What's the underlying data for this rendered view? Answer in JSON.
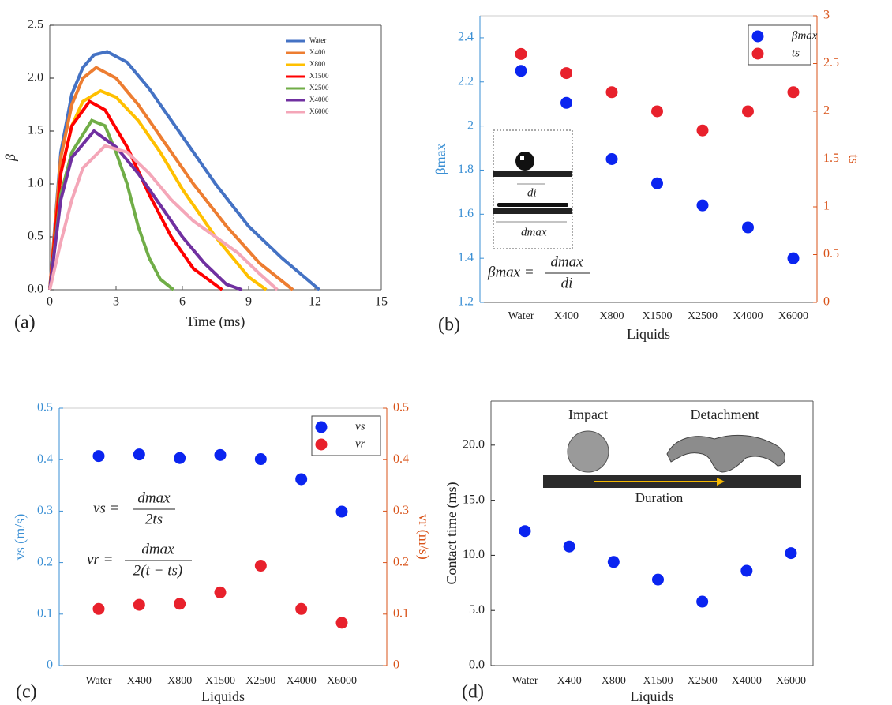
{
  "chart_data": [
    {
      "type": "line",
      "panel_label": "(a)",
      "xlabel": "Time (ms)",
      "ylabel": "β",
      "xlim": [
        0,
        15
      ],
      "xticks": [
        0,
        3,
        6,
        9,
        12,
        15
      ],
      "ylim": [
        0,
        2.5
      ],
      "yticks": [
        {
          "value": 0,
          "label": "0.0"
        },
        0.5,
        {
          "value": 1,
          "label": "1.0"
        },
        1.5,
        {
          "value": 2,
          "label": "2.0"
        },
        2.5
      ],
      "legend": "upper right",
      "series": [
        {
          "name": "Water",
          "color": "#4472c4",
          "x": [
            0,
            0.5,
            1,
            1.5,
            2,
            2.6,
            3.5,
            4.5,
            6,
            7.5,
            9,
            10.5,
            12.2
          ],
          "values": [
            0,
            1.3,
            1.85,
            2.1,
            2.22,
            2.25,
            2.15,
            1.9,
            1.45,
            1.0,
            0.6,
            0.3,
            0
          ]
        },
        {
          "name": "X400",
          "color": "#ed7d31",
          "x": [
            0,
            0.5,
            1,
            1.5,
            2.1,
            3,
            4,
            5,
            6.5,
            8,
            9.5,
            11
          ],
          "values": [
            0,
            1.25,
            1.75,
            2.0,
            2.1,
            2.0,
            1.75,
            1.45,
            1.0,
            0.6,
            0.25,
            0
          ]
        },
        {
          "name": "X800",
          "color": "#ffc000",
          "x": [
            0,
            0.5,
            1,
            1.5,
            2.3,
            3,
            4,
            5,
            6,
            7.5,
            9,
            9.8
          ],
          "values": [
            0,
            1.1,
            1.55,
            1.78,
            1.88,
            1.82,
            1.6,
            1.3,
            0.95,
            0.5,
            0.12,
            0
          ]
        },
        {
          "name": "X1500",
          "color": "#ff0000",
          "x": [
            0,
            0.5,
            1,
            1.8,
            2.5,
            3.5,
            4.5,
            5.5,
            6.5,
            7.8
          ],
          "values": [
            0,
            1.1,
            1.55,
            1.78,
            1.7,
            1.35,
            0.9,
            0.5,
            0.2,
            0
          ]
        },
        {
          "name": "X2500",
          "color": "#70ad47",
          "x": [
            0,
            0.5,
            1,
            1.9,
            2.5,
            3,
            3.5,
            4,
            4.5,
            5,
            5.6
          ],
          "values": [
            0,
            0.9,
            1.3,
            1.6,
            1.55,
            1.3,
            1.0,
            0.6,
            0.3,
            0.1,
            0
          ]
        },
        {
          "name": "X4000",
          "color": "#7030a0",
          "x": [
            0,
            0.5,
            1,
            2,
            3,
            4,
            5,
            6,
            7,
            8,
            8.7
          ],
          "values": [
            0,
            0.85,
            1.25,
            1.5,
            1.35,
            1.1,
            0.8,
            0.5,
            0.25,
            0.05,
            0
          ]
        },
        {
          "name": "X6000",
          "color": "#f4a6b8",
          "x": [
            0,
            0.5,
            1,
            1.5,
            2.5,
            3.5,
            4.5,
            5.5,
            6.5,
            7.5,
            8.5,
            9.5,
            10.3
          ],
          "values": [
            0,
            0.45,
            0.85,
            1.15,
            1.36,
            1.3,
            1.1,
            0.85,
            0.65,
            0.5,
            0.35,
            0.15,
            0
          ]
        }
      ]
    },
    {
      "type": "scatter",
      "panel_label": "(b)",
      "xlabel": "Liquids",
      "ylabel": "βmax",
      "y2label": "ts",
      "categories": [
        "Water",
        "X400",
        "X800",
        "X1500",
        "X2500",
        "X4000",
        "X6000"
      ],
      "ylim": [
        1.2,
        2.5
      ],
      "yticks": [
        1.2,
        1.4,
        1.6,
        1.8,
        2,
        2.2,
        2.4
      ],
      "y2lim": [
        0,
        3
      ],
      "y2ticks": [
        0,
        0.5,
        1,
        1.5,
        2,
        2.5,
        3
      ],
      "ycolor": "#3a8fd4",
      "y2color": "#d95319",
      "legend": "upper right",
      "series": [
        {
          "name": "βmax",
          "color": "#0a24f0",
          "values": [
            2.25,
            2.105,
            1.85,
            1.74,
            1.64,
            1.54,
            1.4
          ]
        },
        {
          "name": "ts",
          "color": "#e8212c",
          "axis": "y2",
          "values": [
            2.6,
            2.4,
            2.2,
            2.0,
            1.8,
            2.0,
            2.2
          ]
        }
      ],
      "formula": {
        "lhs": "βmax =",
        "num": "dmax",
        "den": "di"
      },
      "inset": {
        "small": "di",
        "large": "dmax"
      }
    },
    {
      "type": "scatter",
      "panel_label": "(c)",
      "xlabel": "Liquids",
      "ylabel": "vs (m/s)",
      "y2label": "vr (m/s)",
      "categories": [
        "Water",
        "X400",
        "X800",
        "X1500",
        "X2500",
        "X4000",
        "X6000"
      ],
      "ylim": [
        0,
        0.5
      ],
      "yticks": [
        0,
        0.1,
        0.2,
        0.3,
        0.4,
        0.5
      ],
      "y2lim": [
        0,
        0.5
      ],
      "y2ticks": [
        0,
        0.1,
        0.2,
        0.3,
        0.4,
        0.5
      ],
      "ycolor": "#3a8fd4",
      "y2color": "#d95319",
      "legend": "upper right",
      "series": [
        {
          "name": "vs",
          "color": "#0a24f0",
          "values": [
            0.407,
            0.41,
            0.403,
            0.409,
            0.401,
            0.362,
            0.299
          ]
        },
        {
          "name": "vr",
          "color": "#e8212c",
          "axis": "y2",
          "values": [
            0.11,
            0.118,
            0.12,
            0.142,
            0.194,
            0.11,
            0.083
          ]
        }
      ],
      "formulas": [
        {
          "lhs": "vs =",
          "num": "dmax",
          "den": "2ts"
        },
        {
          "lhs": "vr =",
          "num": "dmax",
          "den": "2(t − ts)"
        }
      ]
    },
    {
      "type": "scatter",
      "panel_label": "(d)",
      "xlabel": "Liquids",
      "ylabel": "Contact time (ms)",
      "categories": [
        "Water",
        "X400",
        "X800",
        "X1500",
        "X2500",
        "X4000",
        "X6000"
      ],
      "ylim": [
        0,
        24
      ],
      "yticks": [
        {
          "value": 0,
          "label": "0.0"
        },
        {
          "value": 5,
          "label": "5.0"
        },
        {
          "value": 10,
          "label": "10.0"
        },
        {
          "value": 15,
          "label": "15.0"
        },
        {
          "value": 20,
          "label": "20.0"
        }
      ],
      "series": [
        {
          "name": null,
          "color": "#0a24f0",
          "values": [
            12.2,
            10.8,
            9.4,
            7.8,
            5.8,
            8.6,
            10.2
          ]
        }
      ],
      "inset": {
        "left": "Impact",
        "right": "Detachment",
        "arrow": "Duration"
      }
    }
  ]
}
